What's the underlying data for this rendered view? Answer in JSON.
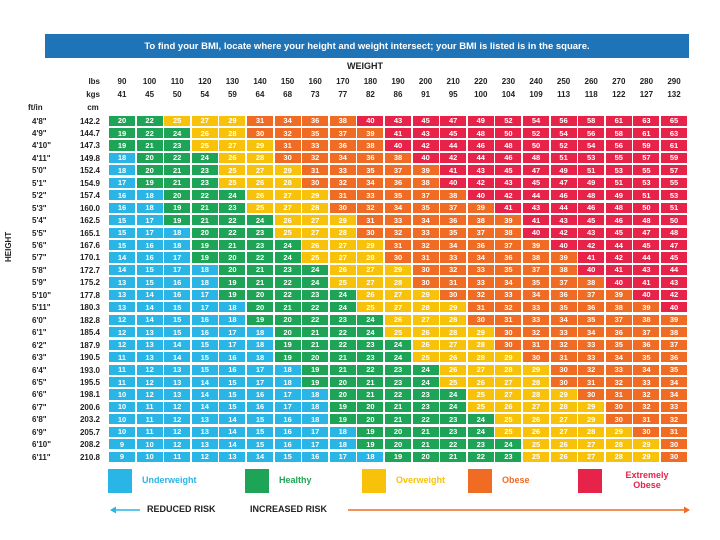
{
  "banner": "To find your BMI, locate where your height and weight intersect; your BMI is listed is in the square.",
  "weight_title": "WEIGHT",
  "height_title": "HEIGHT",
  "labels": {
    "lbs": "lbs",
    "kgs": "kgs",
    "ftin": "ft/in",
    "cm": "cm"
  },
  "lbs": [
    "90",
    "100",
    "110",
    "120",
    "130",
    "140",
    "150",
    "160",
    "170",
    "180",
    "190",
    "200",
    "210",
    "220",
    "230",
    "240",
    "250",
    "260",
    "270",
    "280",
    "290"
  ],
  "kgs": [
    "41",
    "45",
    "50",
    "54",
    "59",
    "64",
    "68",
    "73",
    "77",
    "82",
    "86",
    "91",
    "95",
    "100",
    "104",
    "109",
    "113",
    "118",
    "122",
    "127",
    "132"
  ],
  "colors": {
    "underweight": "#29b6e6",
    "healthy": "#1ea456",
    "overweight": "#f9c20a",
    "obese": "#f06b24",
    "extremely_obese": "#e8234a"
  },
  "heights": [
    "4'8\"",
    "4'9\"",
    "4'10\"",
    "4'11\"",
    "5'0\"",
    "5'1\"",
    "5'2\"",
    "5'3\"",
    "5'4\"",
    "5'5\"",
    "5'6\"",
    "5'7\"",
    "5'8\"",
    "5'9\"",
    "5'10\"",
    "5'11\"",
    "6'0\"",
    "6'1\"",
    "6'2\"",
    "6'3\"",
    "6'4\"",
    "6'5\"",
    "6'6\"",
    "6'7\"",
    "6'8\"",
    "6'9\"",
    "6'10\"",
    "6'11\""
  ],
  "cms": [
    "142.2",
    "144.7",
    "147.3",
    "149.8",
    "152.4",
    "154.9",
    "157.4",
    "160.0",
    "162.5",
    "165.1",
    "167.6",
    "170.1",
    "172.7",
    "175.2",
    "177.8",
    "180.3",
    "182.8",
    "185.4",
    "187.9",
    "190.5",
    "193.0",
    "195.5",
    "198.1",
    "200.6",
    "203.2",
    "205.7",
    "208.2",
    "210.8"
  ],
  "bmi": [
    [
      20,
      22,
      25,
      27,
      29,
      31,
      34,
      36,
      38,
      40,
      43,
      45,
      47,
      49,
      52,
      54,
      56,
      58,
      61,
      63,
      65
    ],
    [
      19,
      22,
      24,
      26,
      28,
      30,
      32,
      35,
      37,
      39,
      41,
      43,
      45,
      48,
      50,
      52,
      54,
      56,
      58,
      61,
      63
    ],
    [
      19,
      21,
      23,
      25,
      27,
      29,
      31,
      33,
      36,
      38,
      40,
      42,
      44,
      46,
      48,
      50,
      52,
      54,
      56,
      59,
      61
    ],
    [
      18,
      20,
      22,
      24,
      26,
      28,
      30,
      32,
      34,
      36,
      38,
      40,
      42,
      44,
      46,
      48,
      51,
      53,
      55,
      57,
      59
    ],
    [
      18,
      20,
      21,
      23,
      25,
      27,
      29,
      31,
      33,
      35,
      37,
      39,
      41,
      43,
      45,
      47,
      49,
      51,
      53,
      55,
      57
    ],
    [
      17,
      19,
      21,
      23,
      25,
      26,
      28,
      30,
      32,
      34,
      36,
      38,
      40,
      42,
      43,
      45,
      47,
      49,
      51,
      53,
      55
    ],
    [
      16,
      18,
      20,
      22,
      24,
      26,
      27,
      29,
      31,
      33,
      35,
      37,
      38,
      40,
      42,
      44,
      46,
      48,
      49,
      51,
      53
    ],
    [
      16,
      18,
      19,
      21,
      23,
      25,
      27,
      28,
      30,
      32,
      34,
      35,
      37,
      39,
      41,
      43,
      44,
      46,
      48,
      50,
      51
    ],
    [
      15,
      17,
      19,
      21,
      22,
      24,
      26,
      27,
      29,
      31,
      33,
      34,
      36,
      38,
      39,
      41,
      43,
      45,
      46,
      48,
      50
    ],
    [
      15,
      17,
      18,
      20,
      22,
      23,
      25,
      27,
      28,
      30,
      32,
      33,
      35,
      37,
      38,
      40,
      42,
      43,
      45,
      47,
      48
    ],
    [
      15,
      16,
      18,
      19,
      21,
      23,
      24,
      26,
      27,
      29,
      31,
      32,
      34,
      36,
      37,
      39,
      40,
      42,
      44,
      45,
      47
    ],
    [
      14,
      16,
      17,
      19,
      20,
      22,
      24,
      25,
      27,
      28,
      30,
      31,
      33,
      34,
      36,
      38,
      39,
      41,
      42,
      44,
      45
    ],
    [
      14,
      15,
      17,
      18,
      20,
      21,
      23,
      24,
      26,
      27,
      29,
      30,
      32,
      33,
      35,
      37,
      38,
      40,
      41,
      43,
      44
    ],
    [
      13,
      15,
      16,
      18,
      19,
      21,
      22,
      24,
      25,
      27,
      28,
      30,
      31,
      33,
      34,
      35,
      37,
      38,
      40,
      41,
      43
    ],
    [
      13,
      14,
      16,
      17,
      19,
      20,
      22,
      23,
      24,
      26,
      27,
      29,
      30,
      32,
      33,
      34,
      36,
      37,
      39,
      40,
      42
    ],
    [
      13,
      14,
      15,
      17,
      18,
      20,
      21,
      22,
      24,
      25,
      27,
      28,
      29,
      31,
      32,
      33,
      35,
      36,
      38,
      39,
      40
    ],
    [
      12,
      14,
      15,
      16,
      18,
      19,
      20,
      22,
      23,
      24,
      26,
      27,
      28,
      30,
      31,
      33,
      34,
      35,
      37,
      38,
      39
    ],
    [
      12,
      13,
      15,
      16,
      17,
      18,
      20,
      21,
      22,
      24,
      25,
      26,
      28,
      29,
      30,
      32,
      33,
      34,
      36,
      37,
      38
    ],
    [
      12,
      13,
      14,
      15,
      17,
      18,
      19,
      21,
      22,
      23,
      24,
      26,
      27,
      28,
      30,
      31,
      32,
      33,
      35,
      36,
      37
    ],
    [
      11,
      13,
      14,
      15,
      16,
      18,
      19,
      20,
      21,
      23,
      24,
      25,
      26,
      28,
      29,
      30,
      31,
      33,
      34,
      35,
      36
    ],
    [
      11,
      12,
      13,
      15,
      16,
      17,
      18,
      19,
      21,
      22,
      23,
      24,
      26,
      27,
      28,
      29,
      30,
      32,
      33,
      34,
      35
    ],
    [
      11,
      12,
      13,
      14,
      15,
      17,
      18,
      19,
      20,
      21,
      23,
      24,
      25,
      26,
      27,
      28,
      30,
      31,
      32,
      33,
      34
    ],
    [
      10,
      12,
      13,
      14,
      15,
      16,
      17,
      18,
      20,
      21,
      22,
      23,
      24,
      25,
      27,
      28,
      29,
      30,
      31,
      32,
      34
    ],
    [
      10,
      11,
      12,
      14,
      15,
      16,
      17,
      18,
      19,
      20,
      21,
      23,
      24,
      25,
      26,
      27,
      28,
      29,
      30,
      32,
      33
    ],
    [
      10,
      11,
      12,
      13,
      14,
      15,
      16,
      18,
      19,
      20,
      21,
      22,
      23,
      24,
      25,
      26,
      27,
      29,
      30,
      31,
      32
    ],
    [
      10,
      11,
      12,
      13,
      14,
      15,
      16,
      17,
      18,
      19,
      20,
      21,
      23,
      24,
      25,
      26,
      27,
      28,
      29,
      30,
      31
    ],
    [
      9,
      10,
      12,
      13,
      14,
      15,
      16,
      17,
      18,
      19,
      20,
      21,
      22,
      23,
      24,
      25,
      26,
      27,
      28,
      29,
      30
    ],
    [
      9,
      10,
      11,
      12,
      13,
      14,
      15,
      16,
      17,
      18,
      19,
      20,
      21,
      22,
      23,
      25,
      26,
      27,
      28,
      29,
      30
    ]
  ],
  "legend": [
    {
      "label": "Underweight",
      "color": "#29b6e6"
    },
    {
      "label": "Healthy",
      "color": "#1ea456"
    },
    {
      "label": "Overweight",
      "color": "#f9c20a"
    },
    {
      "label": "Obese",
      "color": "#f06b24"
    },
    {
      "label": "Extremely Obese",
      "color": "#e8234a"
    }
  ],
  "reduced_risk": "REDUCED RISK",
  "increased_risk": "INCREASED RISK"
}
